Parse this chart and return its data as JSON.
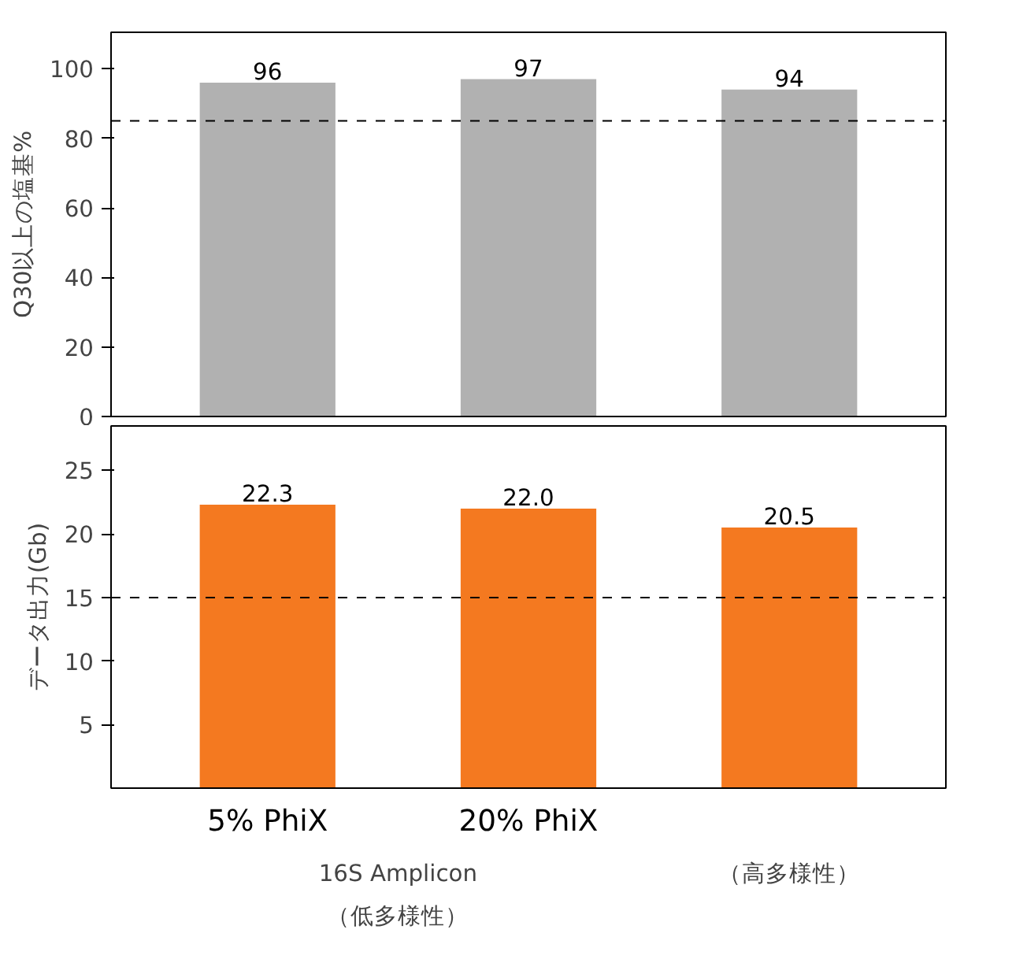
{
  "chart_data": [
    {
      "type": "bar",
      "ylabel": "Q30以上の塩基%",
      "categories": [
        null,
        null,
        null
      ],
      "values": [
        96,
        97,
        94
      ],
      "color": "#b1b1b1",
      "ylim": [
        0,
        110.5
      ],
      "yticks": [
        0,
        20,
        40,
        60,
        80,
        100
      ],
      "data_labels": true,
      "tick_labels": "y",
      "grid": false,
      "ref_lines": [
        {
          "axis": "y",
          "value": 85,
          "color": "#000000",
          "line_style": "dashed"
        }
      ]
    },
    {
      "type": "bar",
      "ylabel": "データ出力(Gb)",
      "categories": [
        "5% PhiX",
        "20% PhiX",
        null
      ],
      "values": [
        22.3,
        22.0,
        20.5
      ],
      "value_labels": [
        "22.3",
        "22.0",
        "20.5"
      ],
      "color": "#f47920",
      "ylim": [
        0,
        28.5
      ],
      "yticks": [
        5,
        10,
        15,
        20,
        25
      ],
      "grid": false,
      "ref_lines": [
        {
          "axis": "y",
          "value": 15,
          "color": "#000000",
          "line_style": "dashed"
        }
      ],
      "annotations": [
        "16S Amplicon\n（低多様性）",
        "（高多様性）"
      ]
    }
  ]
}
